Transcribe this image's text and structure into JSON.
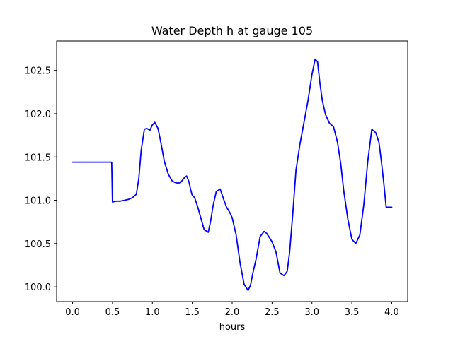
{
  "chart_data": {
    "type": "line",
    "title": "Water Depth h at gauge 105",
    "xlabel": "hours",
    "ylabel": "",
    "xlim": [
      -0.2,
      4.2
    ],
    "ylim": [
      99.83,
      102.84
    ],
    "xticks": [
      0.0,
      0.5,
      1.0,
      1.5,
      2.0,
      2.5,
      3.0,
      3.5,
      4.0
    ],
    "xtick_labels": [
      "0.0",
      "0.5",
      "1.0",
      "1.5",
      "2.0",
      "2.5",
      "3.0",
      "3.5",
      "4.0"
    ],
    "yticks": [
      100.0,
      100.5,
      101.0,
      101.5,
      102.0,
      102.5
    ],
    "ytick_labels": [
      "100.0",
      "100.5",
      "101.0",
      "101.5",
      "102.0",
      "102.5"
    ],
    "grid": false,
    "series_color": "#0000ff",
    "series": [
      {
        "name": "",
        "x": [
          0.0,
          0.1,
          0.2,
          0.3,
          0.4,
          0.48,
          0.49,
          0.5,
          0.55,
          0.6,
          0.65,
          0.7,
          0.75,
          0.8,
          0.83,
          0.86,
          0.9,
          0.93,
          0.97,
          1.0,
          1.03,
          1.07,
          1.1,
          1.15,
          1.2,
          1.25,
          1.3,
          1.35,
          1.4,
          1.43,
          1.46,
          1.48,
          1.5,
          1.53,
          1.57,
          1.6,
          1.65,
          1.7,
          1.73,
          1.76,
          1.8,
          1.85,
          1.89,
          1.93,
          1.97,
          2.0,
          2.05,
          2.1,
          2.15,
          2.2,
          2.23,
          2.26,
          2.3,
          2.35,
          2.4,
          2.43,
          2.46,
          2.5,
          2.55,
          2.6,
          2.65,
          2.69,
          2.72,
          2.76,
          2.8,
          2.85,
          2.9,
          2.95,
          3.0,
          3.04,
          3.07,
          3.1,
          3.13,
          3.17,
          3.22,
          3.27,
          3.32,
          3.36,
          3.4,
          3.45,
          3.5,
          3.55,
          3.6,
          3.65,
          3.7,
          3.75,
          3.8,
          3.84,
          3.87,
          3.9,
          3.93,
          3.96,
          4.0
        ],
        "y": [
          101.44,
          101.44,
          101.44,
          101.44,
          101.44,
          101.44,
          101.44,
          100.98,
          100.99,
          100.99,
          101.0,
          101.01,
          101.03,
          101.07,
          101.25,
          101.58,
          101.82,
          101.83,
          101.81,
          101.87,
          101.9,
          101.83,
          101.7,
          101.45,
          101.3,
          101.22,
          101.2,
          101.2,
          101.26,
          101.28,
          101.21,
          101.12,
          101.06,
          101.03,
          100.92,
          100.82,
          100.66,
          100.63,
          100.76,
          100.93,
          101.1,
          101.13,
          101.02,
          100.92,
          100.86,
          100.8,
          100.6,
          100.27,
          100.03,
          99.96,
          100.02,
          100.16,
          100.32,
          100.58,
          100.64,
          100.62,
          100.58,
          100.52,
          100.4,
          100.16,
          100.13,
          100.18,
          100.4,
          100.85,
          101.35,
          101.65,
          101.9,
          102.15,
          102.45,
          102.63,
          102.6,
          102.35,
          102.15,
          101.99,
          101.89,
          101.85,
          101.67,
          101.43,
          101.1,
          100.78,
          100.55,
          100.5,
          100.6,
          100.95,
          101.45,
          101.82,
          101.78,
          101.67,
          101.45,
          101.2,
          100.92,
          100.92,
          100.92
        ]
      }
    ]
  }
}
